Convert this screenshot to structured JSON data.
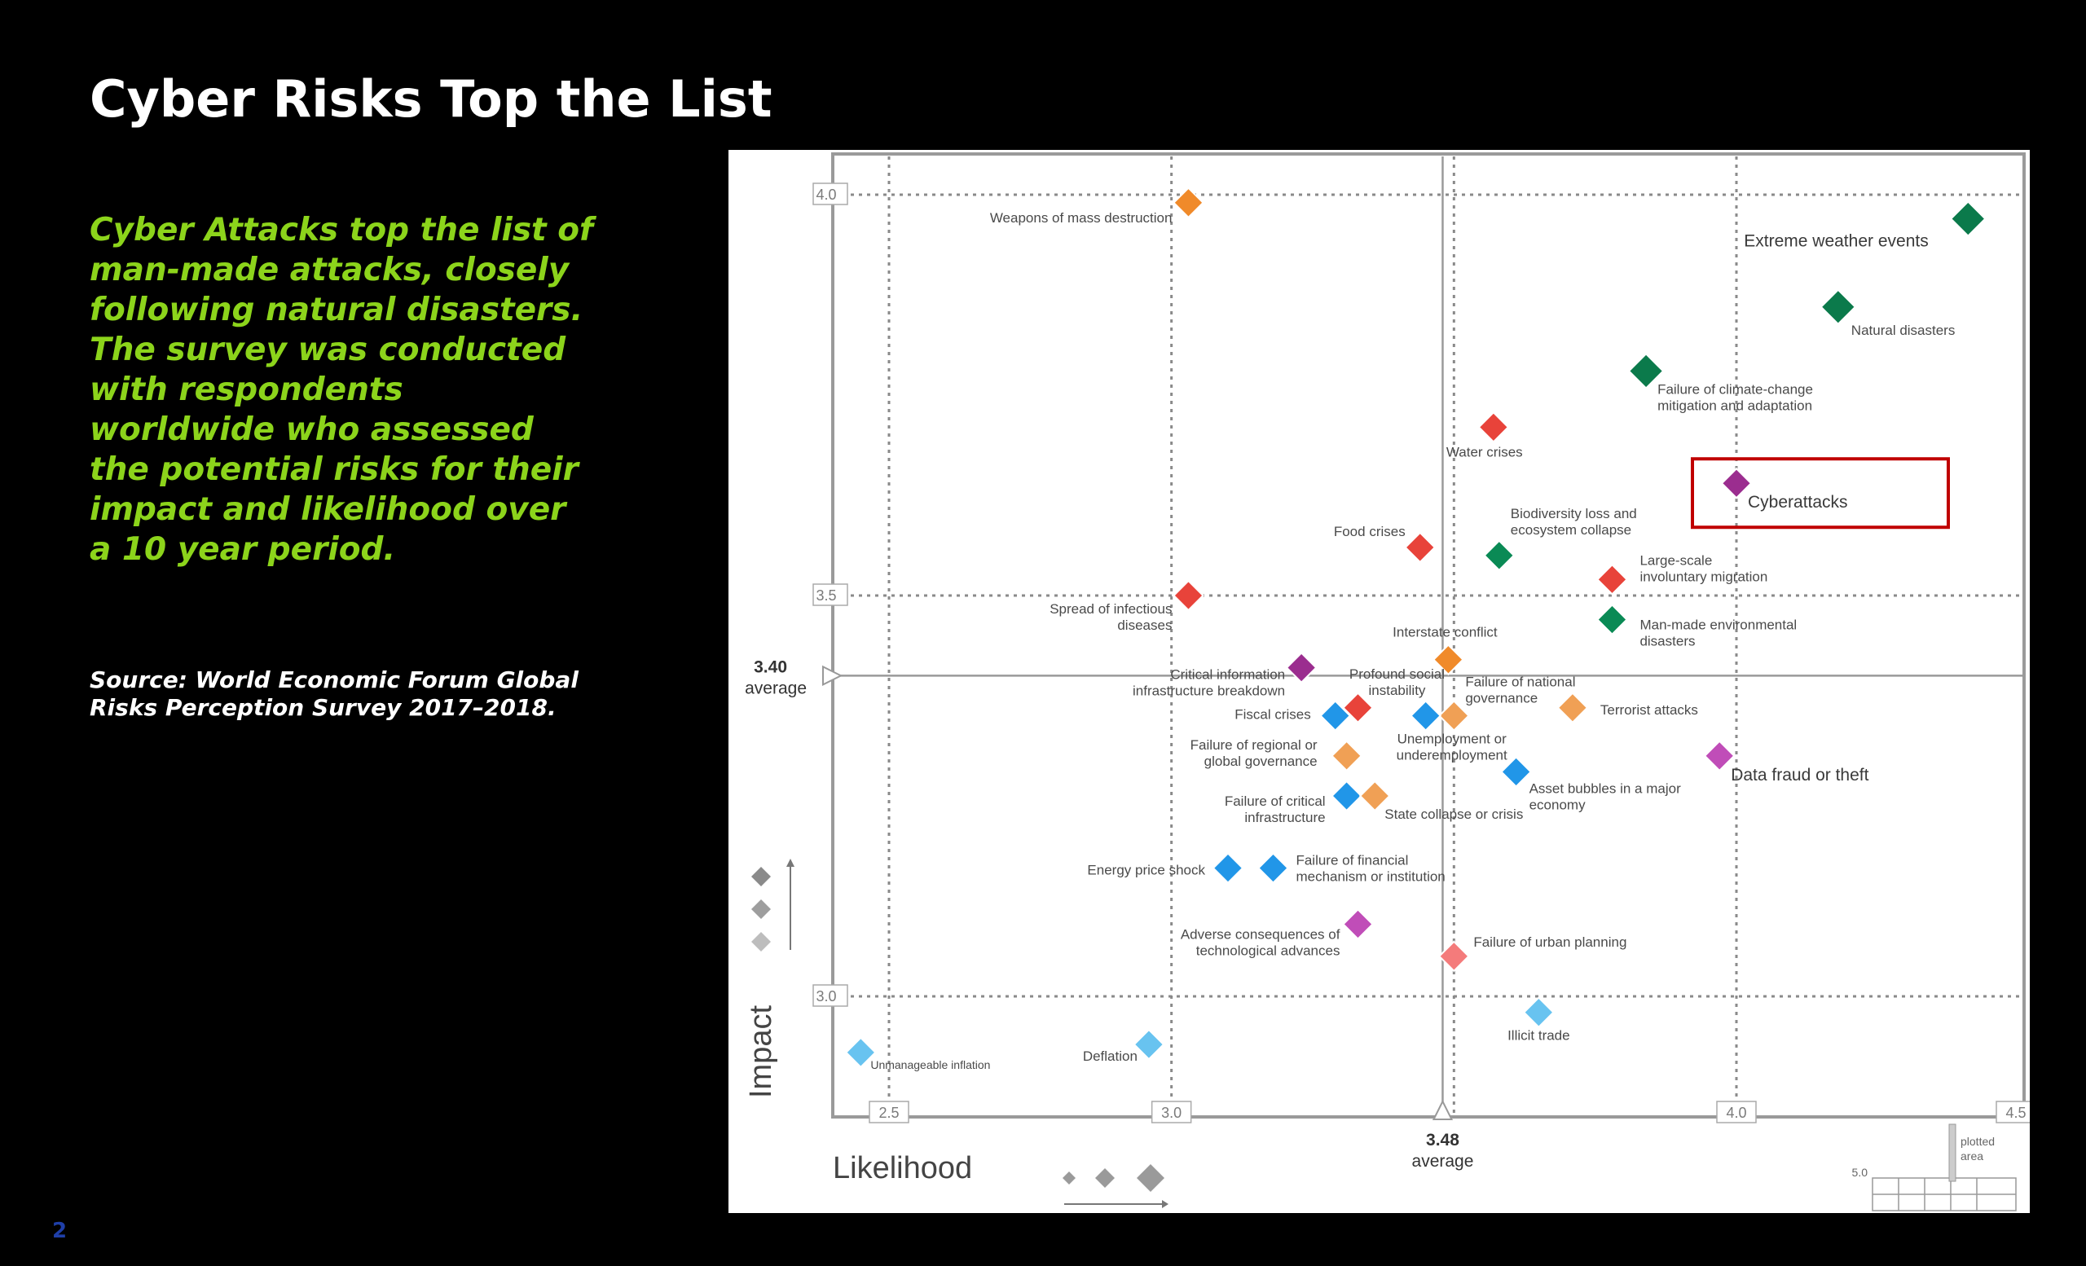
{
  "slide": {
    "title": "Cyber Risks Top the List",
    "summary": "Cyber Attacks top the list of man-made attacks, closely following natural disasters. The survey was conducted with respondents worldwide who assessed the potential risks for their impact and likelihood over a 10 year period.",
    "source": "Source: World Economic Forum Global Risks Perception Survey 2017–2018.",
    "page_number": "2"
  },
  "colors": {
    "background": "#000000",
    "title": "#ffffff",
    "summary_text": "#8cd41b",
    "highlight_box": "#c00000",
    "environmental": "#0a8a55",
    "environmental_dark": "#0b7a4b",
    "societal": "#e8433a",
    "societal_light": "#f47b7b",
    "geopolitical": "#f08a2a",
    "geopolitical_light": "#f0a055",
    "economic": "#2196e8",
    "economic_light": "#68c3f0",
    "technological": "#9b2d8f",
    "technological_light": "#c04db8",
    "grid": "#888888"
  },
  "chart_data": {
    "type": "scatter",
    "xlabel": "Likelihood",
    "ylabel": "Impact",
    "xlim": [
      2.4,
      4.5
    ],
    "ylim": [
      2.85,
      4.0
    ],
    "x_ticks": [
      "2.5",
      "3.0",
      "4.0",
      "4.5"
    ],
    "y_ticks": [
      "3.0",
      "3.5",
      "4.0"
    ],
    "x_average": {
      "value": "3.48",
      "label": "average"
    },
    "y_average": {
      "value": "3.40",
      "label": "average"
    },
    "key_corner_tick": "5.0",
    "key_corner_text": [
      "plotted",
      "area"
    ],
    "grid": true,
    "highlighted": "Cyberattacks",
    "points": [
      {
        "name": "Weapons of mass destruction",
        "x": 3.03,
        "y": 3.99,
        "color": "geopolitical"
      },
      {
        "name": "Extreme weather events",
        "x": 4.41,
        "y": 3.97,
        "color": "environmental_dark"
      },
      {
        "name": "Natural disasters",
        "x": 4.18,
        "y": 3.86,
        "color": "environmental_dark"
      },
      {
        "name": "Failure of climate-change mitigation and adaptation",
        "x": 3.84,
        "y": 3.78,
        "color": "environmental_dark"
      },
      {
        "name": "Water crises",
        "x": 3.57,
        "y": 3.71,
        "color": "societal"
      },
      {
        "name": "Cyberattacks",
        "x": 4.0,
        "y": 3.64,
        "color": "technological"
      },
      {
        "name": "Biodiversity loss and ecosystem collapse",
        "x": 3.58,
        "y": 3.55,
        "color": "environmental"
      },
      {
        "name": "Food crises",
        "x": 3.44,
        "y": 3.56,
        "color": "societal"
      },
      {
        "name": "Large-scale involuntary migration",
        "x": 3.78,
        "y": 3.52,
        "color": "societal"
      },
      {
        "name": "Spread of infectious diseases",
        "x": 3.03,
        "y": 3.5,
        "color": "societal"
      },
      {
        "name": "Man-made environmental disasters",
        "x": 3.78,
        "y": 3.47,
        "color": "environmental"
      },
      {
        "name": "Interstate conflict",
        "x": 3.49,
        "y": 3.42,
        "color": "geopolitical"
      },
      {
        "name": "Critical information infrastructure breakdown",
        "x": 3.23,
        "y": 3.41,
        "color": "technological"
      },
      {
        "name": "Profound social instability",
        "x": 3.33,
        "y": 3.36,
        "color": "societal"
      },
      {
        "name": "Failure of national governance",
        "x": 3.5,
        "y": 3.35,
        "color": "geopolitical_light"
      },
      {
        "name": "Terrorist attacks",
        "x": 3.71,
        "y": 3.36,
        "color": "geopolitical_light"
      },
      {
        "name": "Fiscal crises",
        "x": 3.29,
        "y": 3.35,
        "color": "economic"
      },
      {
        "name": "Unemployment or underemployment",
        "x": 3.45,
        "y": 3.35,
        "color": "economic"
      },
      {
        "name": "Data fraud or theft",
        "x": 3.97,
        "y": 3.3,
        "color": "technological_light"
      },
      {
        "name": "Failure of regional or global governance",
        "x": 3.31,
        "y": 3.3,
        "color": "geopolitical_light"
      },
      {
        "name": "Asset bubbles in a major economy",
        "x": 3.61,
        "y": 3.28,
        "color": "economic"
      },
      {
        "name": "Failure of critical infrastructure",
        "x": 3.31,
        "y": 3.25,
        "color": "economic"
      },
      {
        "name": "State collapse or crisis",
        "x": 3.36,
        "y": 3.25,
        "color": "geopolitical_light"
      },
      {
        "name": "Energy price shock",
        "x": 3.1,
        "y": 3.16,
        "color": "economic"
      },
      {
        "name": "Failure of financial mechanism or institution",
        "x": 3.18,
        "y": 3.16,
        "color": "economic"
      },
      {
        "name": "Adverse consequences of technological advances",
        "x": 3.33,
        "y": 3.09,
        "color": "technological_light"
      },
      {
        "name": "Failure of urban planning",
        "x": 3.5,
        "y": 3.05,
        "color": "societal_light"
      },
      {
        "name": "Illicit trade",
        "x": 3.65,
        "y": 2.98,
        "color": "economic_light"
      },
      {
        "name": "Unmanageable inflation",
        "x": 2.45,
        "y": 2.93,
        "color": "economic_light"
      },
      {
        "name": "Deflation",
        "x": 2.96,
        "y": 2.94,
        "color": "economic_light"
      }
    ]
  }
}
